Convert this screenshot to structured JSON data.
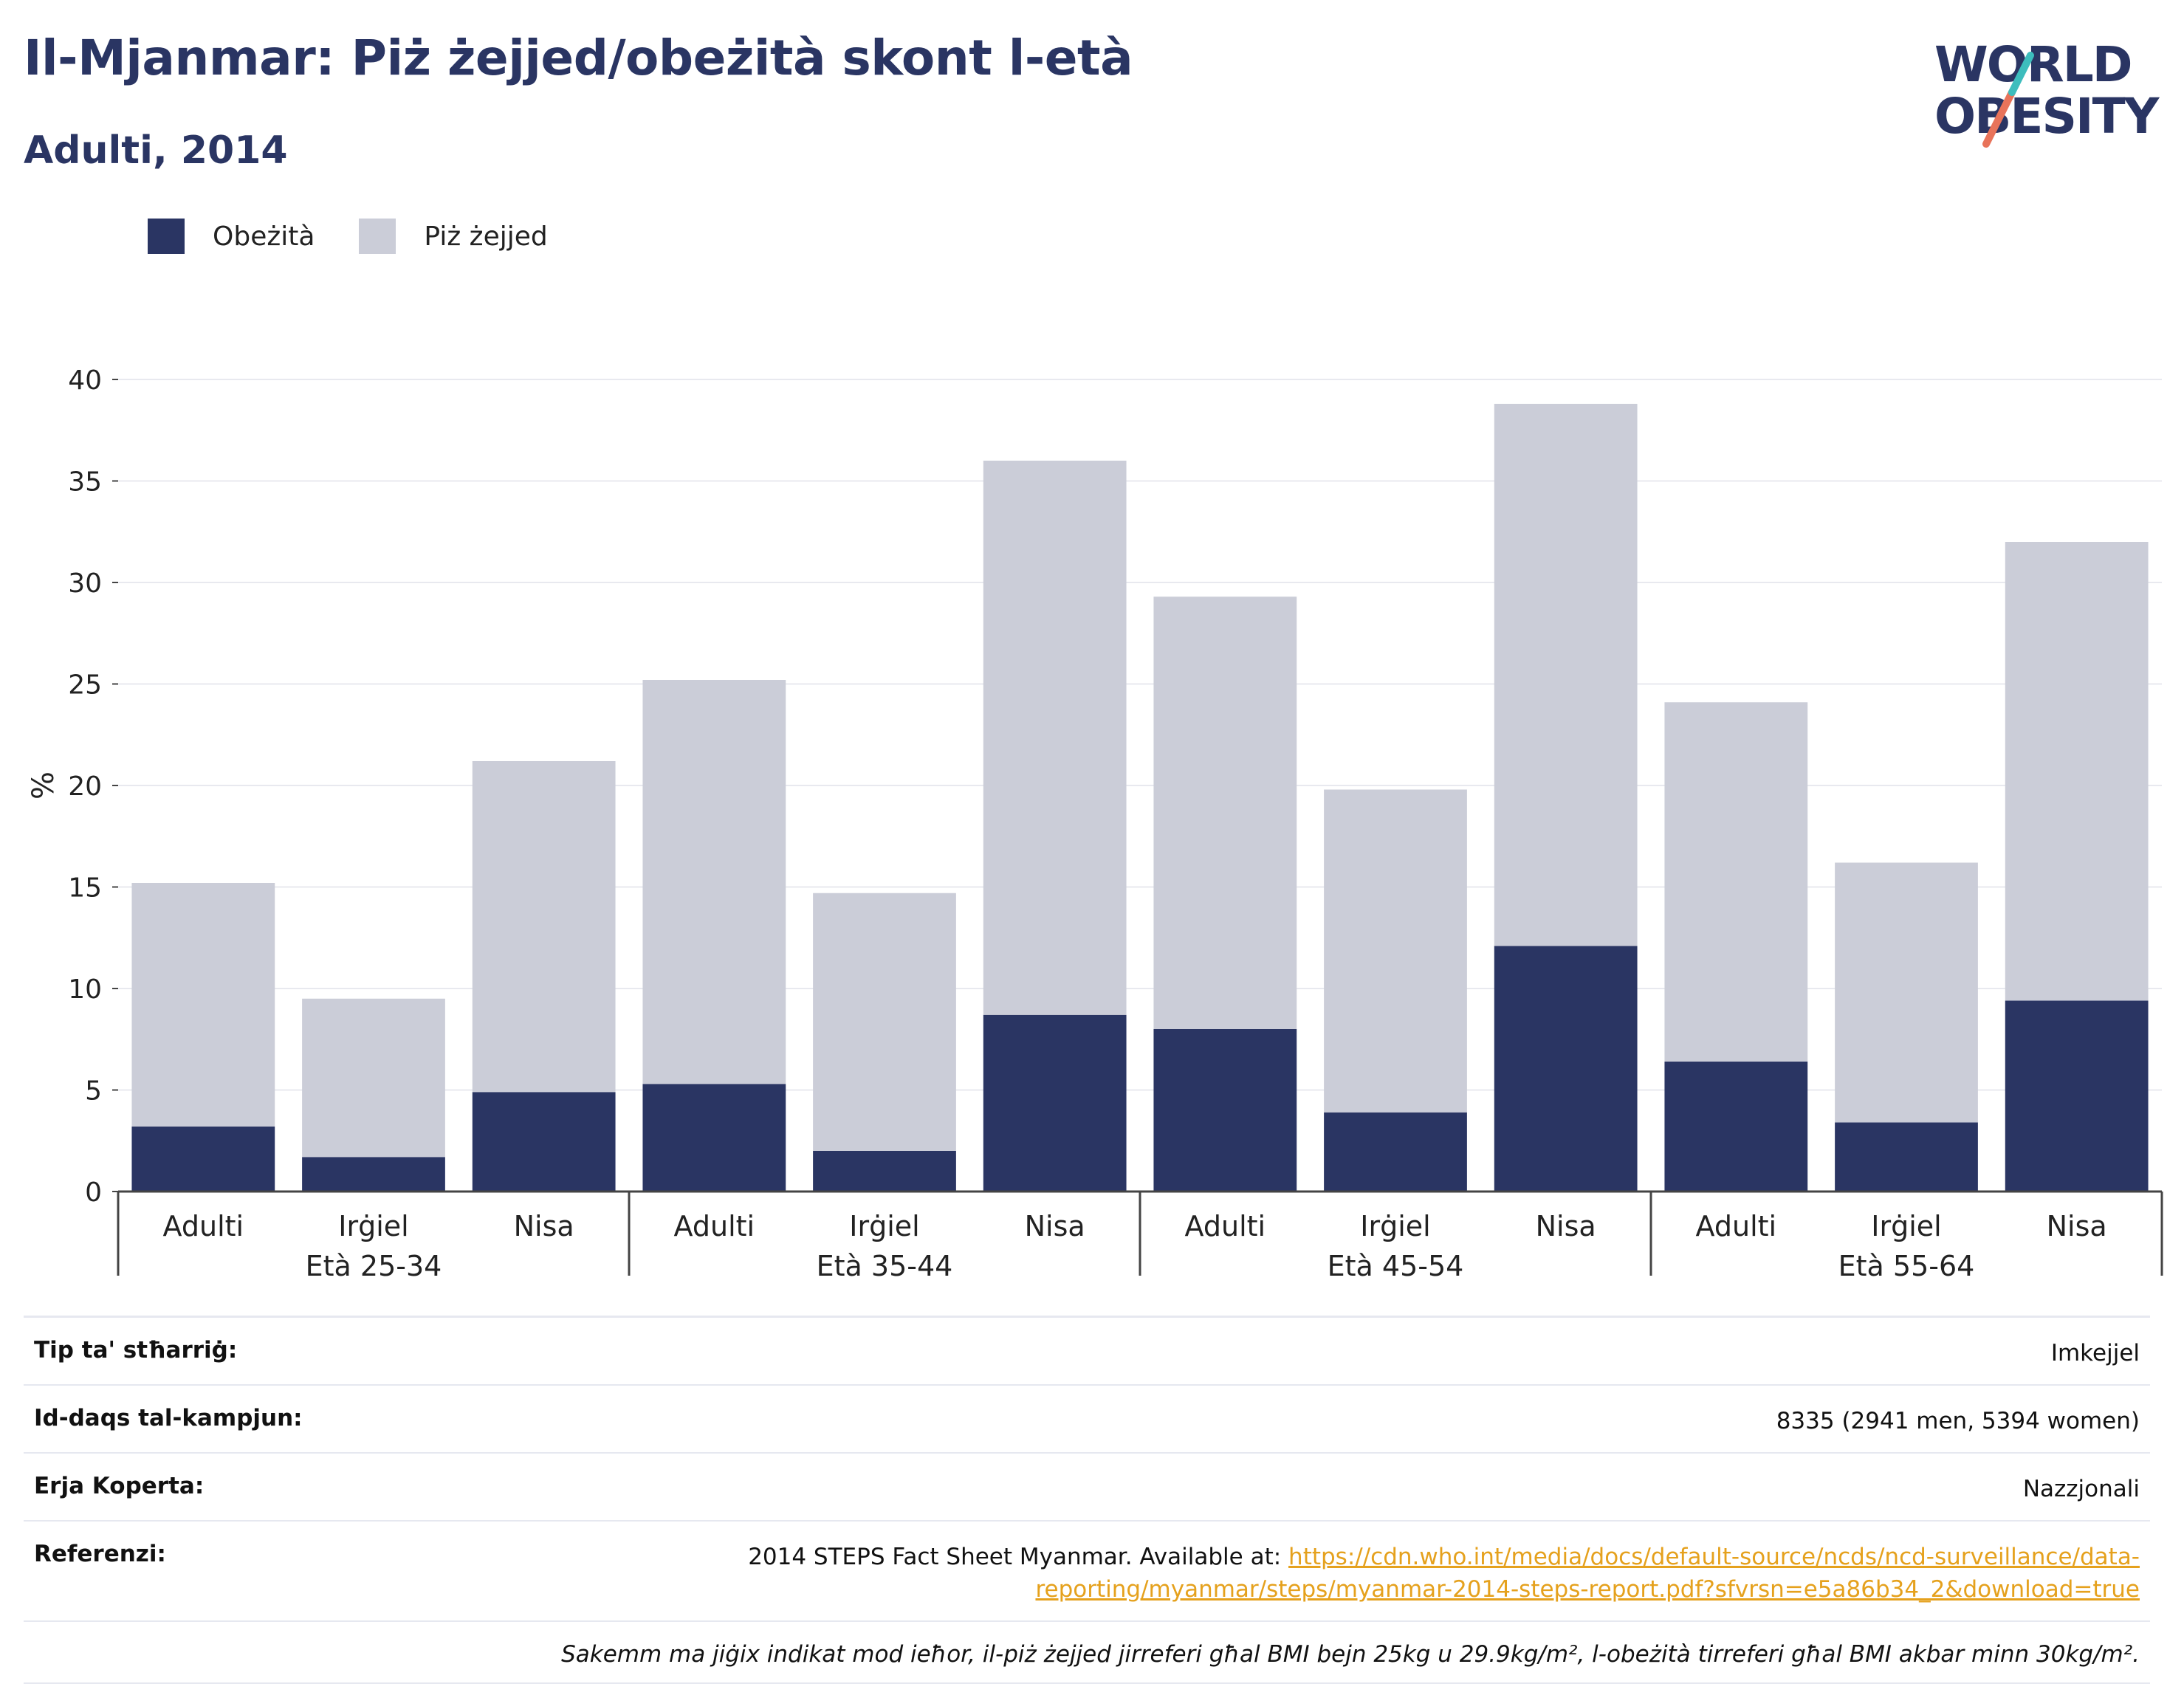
{
  "header": {
    "title": "Il-Mjanmar: Piż żejjed/obeżità skont l-età",
    "subtitle": "Adulti, 2014"
  },
  "logo": {
    "line1": "WORLD",
    "line2": "OBESITY"
  },
  "legend": [
    {
      "label": "Obeżità",
      "color": "#2a3563"
    },
    {
      "label": "Piż żejjed",
      "color": "#cbcdd8"
    }
  ],
  "chart_data": {
    "type": "bar",
    "stacked": true,
    "ylabel": "%",
    "ylim": [
      0,
      40
    ],
    "yticks": [
      0,
      5,
      10,
      15,
      20,
      25,
      30,
      35,
      40
    ],
    "grid": true,
    "groups": [
      "Età 25-34",
      "Età 35-44",
      "Età 45-54",
      "Età 55-64"
    ],
    "subcategories": [
      "Adulti",
      "Irġiel",
      "Nisa"
    ],
    "series": [
      {
        "name": "Obeżità",
        "color": "#2a3563",
        "values": [
          3.2,
          1.7,
          4.9,
          5.3,
          2.0,
          8.7,
          8.0,
          3.9,
          12.1,
          6.4,
          3.4,
          9.4
        ]
      },
      {
        "name": "Piż żejjed",
        "color": "#cbcdd8",
        "values": [
          12.0,
          7.8,
          16.3,
          19.9,
          12.7,
          27.3,
          21.3,
          15.9,
          26.7,
          17.7,
          12.8,
          22.6
        ]
      }
    ],
    "totals": [
      15.2,
      9.5,
      21.2,
      25.2,
      14.7,
      36.0,
      29.3,
      19.8,
      38.8,
      24.1,
      16.2,
      32.0
    ]
  },
  "info": {
    "survey_type_label": "Tip ta' stħarriġ:",
    "survey_type_value": "Imkejjel",
    "sample_size_label": "Id-daqs tal-kampjun:",
    "sample_size_value": "8335 (2941 men, 5394 women)",
    "area_label": "Erja Koperta:",
    "area_value": "Nazzjonali",
    "references_label": "Referenzi:",
    "references_text": "2014 STEPS Fact Sheet Myanmar. Available at: ",
    "references_link": "https://cdn.who.int/media/docs/default-source/ncds/ncd-surveillance/data-reporting/myanmar/steps/myanmar-2014-steps-report.pdf?sfvrsn=e5a86b34_2&download=true",
    "note": "Sakemm ma jiġix indikat mod ieħor, il-piż żejjed jirreferi għal BMI bejn 25kg u 29.9kg/m², l-obeżità tirreferi għal BMI akbar minn 30kg/m²."
  }
}
